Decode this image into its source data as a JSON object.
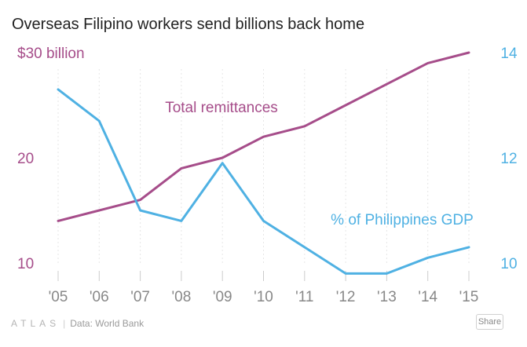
{
  "title": "Overseas Filipino workers send billions back home",
  "footer": {
    "brand": "ATLAS",
    "separator": "|",
    "source": "Data: World Bank",
    "share_label": "Share"
  },
  "colors": {
    "remittances": "#a64d8a",
    "gdp_share": "#4fb1e3",
    "axis_text": "#888888",
    "grid": "#e6e6e6",
    "tick": "#cccccc"
  },
  "chart_data": {
    "type": "line",
    "title": "Overseas Filipino workers send billions back home",
    "x": [
      "'05",
      "'06",
      "'07",
      "'08",
      "'09",
      "'10",
      "'11",
      "'12",
      "'13",
      "'14",
      "'15"
    ],
    "grid": true,
    "y_left": {
      "ticks": [
        10,
        20,
        30
      ],
      "tick_labels": [
        "10",
        "20",
        "$30 billion"
      ],
      "range": [
        10,
        30
      ]
    },
    "y_right": {
      "ticks": [
        10,
        12,
        14
      ],
      "tick_labels": [
        "10",
        "12",
        "14"
      ],
      "range": [
        10,
        14
      ]
    },
    "series": [
      {
        "name": "Total remittances",
        "axis": "left",
        "values": [
          14,
          15,
          16,
          19,
          20,
          22,
          23,
          25,
          27,
          29,
          30
        ]
      },
      {
        "name": "% of Philippines GDP",
        "axis": "right",
        "values": [
          13.3,
          12.7,
          11.0,
          10.8,
          11.9,
          10.8,
          10.3,
          9.8,
          9.8,
          10.1,
          10.3
        ]
      }
    ]
  }
}
